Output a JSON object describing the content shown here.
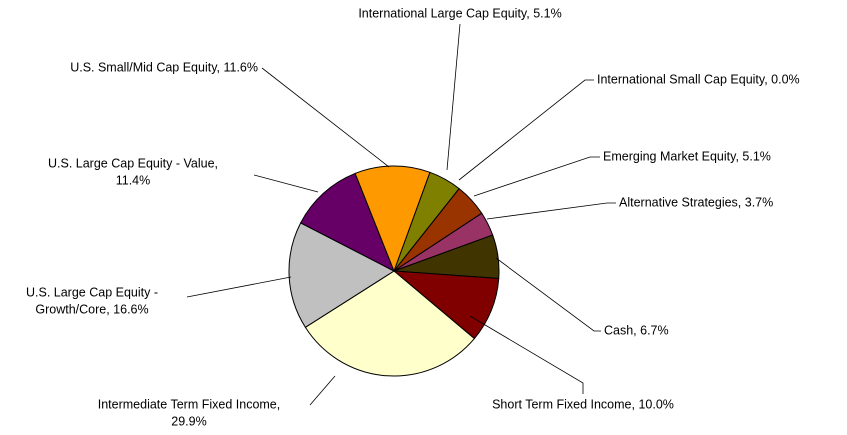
{
  "chart_data": {
    "type": "pie",
    "labels": [
      [
        "International Large Cap Equity, 5.1%"
      ],
      [
        "International Small Cap Equity, 0.0%"
      ],
      [
        "Emerging Market Equity, 5.1%"
      ],
      [
        "Alternative Strategies, 3.7%"
      ],
      [
        "Cash, 6.7%"
      ],
      [
        "Short Term Fixed Income, 10.0%"
      ],
      [
        "Intermediate Term Fixed Income,",
        "29.9%"
      ],
      [
        "U.S. Large Cap Equity -",
        "Growth/Core, 16.6%"
      ],
      [
        "U.S. Large Cap Equity - Value,",
        "11.4%"
      ],
      [
        "U.S. Small/Mid Cap Equity, 11.6%"
      ]
    ],
    "values": [
      5.1,
      0.0,
      5.1,
      3.7,
      6.7,
      10.0,
      29.9,
      16.6,
      11.4,
      11.6
    ],
    "colors": [
      "#808000",
      "#3366ff",
      "#993300",
      "#993366",
      "#403500",
      "#800000",
      "#ffffcc",
      "#c0c0c0",
      "#660066",
      "#ff9900"
    ]
  }
}
